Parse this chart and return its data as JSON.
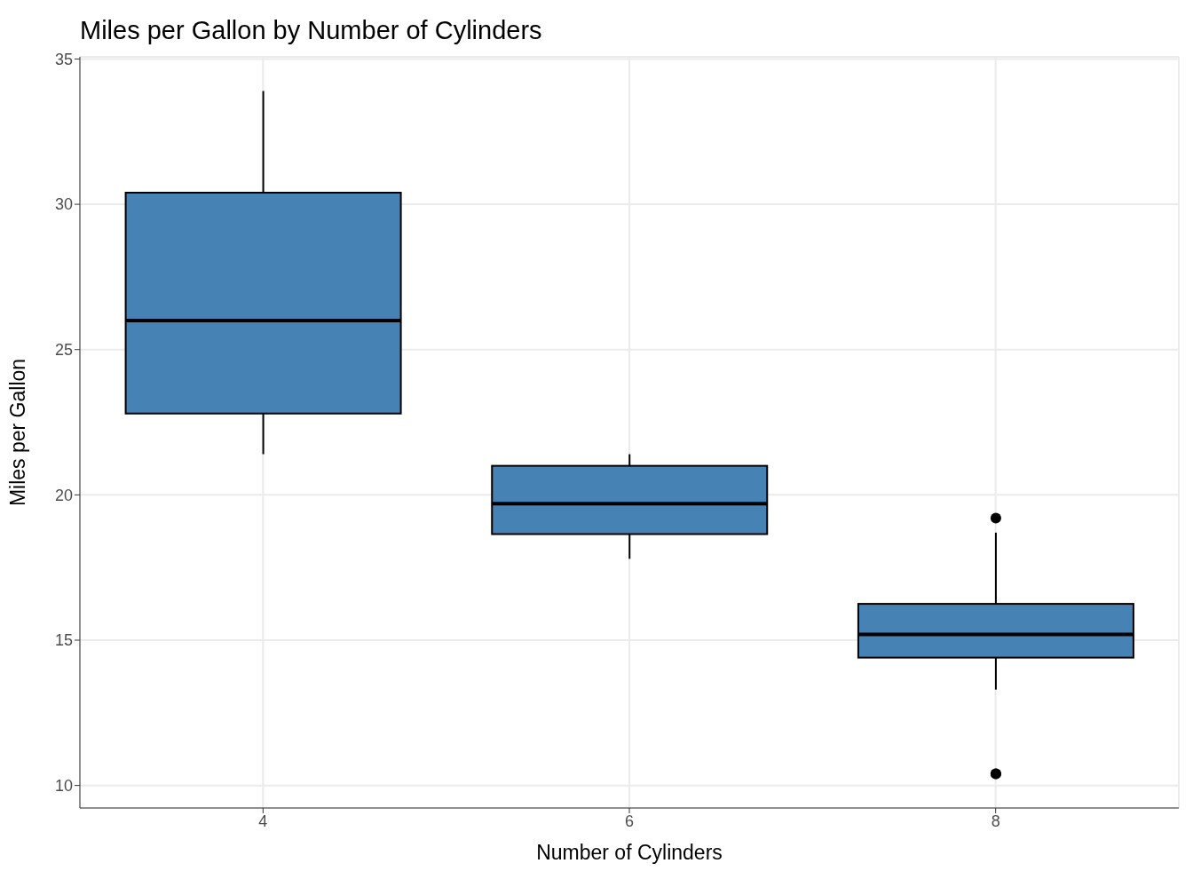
{
  "chart_data": {
    "type": "box",
    "title": "Miles per Gallon by Number of Cylinders",
    "xlabel": "Number of Cylinders",
    "ylabel": "Miles per Gallon",
    "categories": [
      "4",
      "6",
      "8"
    ],
    "color": "#4682b4",
    "boxes": [
      {
        "low": 21.4,
        "q1": 22.8,
        "median": 26.0,
        "q3": 30.4,
        "high": 33.9
      },
      {
        "low": 17.8,
        "q1": 18.65,
        "median": 19.7,
        "q3": 21.0,
        "high": 21.4
      },
      {
        "low": 13.3,
        "q1": 14.4,
        "median": 15.2,
        "q3": 16.25,
        "high": 18.7,
        "outliers": [
          10.4,
          10.4,
          19.2
        ]
      }
    ],
    "ylim": [
      9.225,
      35.075
    ],
    "yticks": [
      10,
      15,
      20,
      25,
      30,
      35
    ],
    "grid": true
  }
}
